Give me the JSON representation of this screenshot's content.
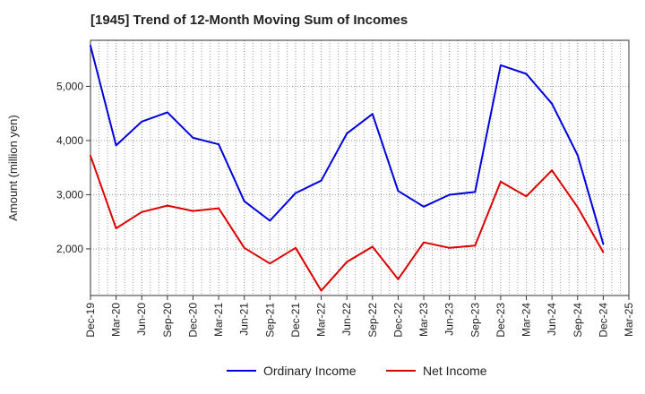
{
  "chart_data": {
    "type": "line",
    "title": "[1945]  Trend of 12-Month Moving Sum of Incomes",
    "xlabel": "",
    "ylabel": "Amount (million yen)",
    "categories": [
      "Dec-19",
      "Mar-20",
      "Jun-20",
      "Sep-20",
      "Dec-20",
      "Mar-21",
      "Jun-21",
      "Sep-21",
      "Dec-21",
      "Mar-22",
      "Jun-22",
      "Sep-22",
      "Dec-22",
      "Mar-23",
      "Jun-23",
      "Sep-23",
      "Dec-23",
      "Mar-24",
      "Jun-24",
      "Sep-24",
      "Dec-24",
      "Mar-25"
    ],
    "ylim": [
      1140,
      5850
    ],
    "yticks": [
      2000,
      3000,
      4000,
      5000
    ],
    "ytick_labels": [
      "2,000",
      "3,000",
      "4,000",
      "5,000"
    ],
    "grid": true,
    "legend_position": "bottom",
    "series": [
      {
        "name": "Ordinary Income",
        "color": "#0000dd",
        "values": [
          5750,
          3910,
          4350,
          4520,
          4050,
          3930,
          2880,
          2520,
          3030,
          3260,
          4130,
          4490,
          3070,
          2780,
          3000,
          3050,
          5390,
          5230,
          4680,
          3730,
          2090,
          null
        ]
      },
      {
        "name": "Net Income",
        "color": "#dd0000",
        "values": [
          3720,
          2380,
          2680,
          2800,
          2700,
          2750,
          2020,
          1730,
          2020,
          1230,
          1760,
          2040,
          1440,
          2120,
          2020,
          2060,
          3240,
          2970,
          3450,
          2770,
          1940,
          null
        ]
      }
    ]
  }
}
